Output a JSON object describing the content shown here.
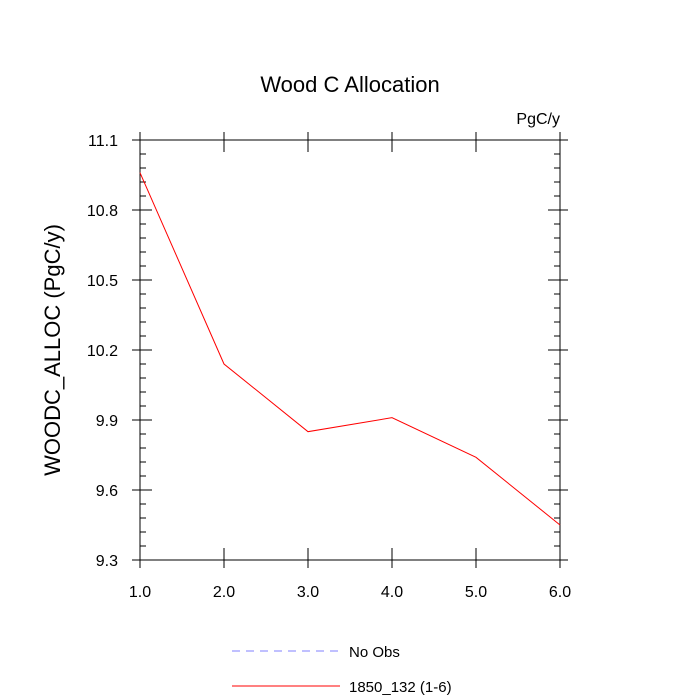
{
  "chart_data": {
    "type": "line",
    "title": "Wood C Allocation",
    "units": "PgC/y",
    "xlabel": "",
    "ylabel": "WOODC_ALLOC  (PgC/y)",
    "xlim": [
      1.0,
      6.0
    ],
    "ylim": [
      9.3,
      11.1
    ],
    "x_ticks": [
      "1.0",
      "2.0",
      "3.0",
      "4.0",
      "5.0",
      "6.0"
    ],
    "y_ticks": [
      "9.3",
      "9.6",
      "9.9",
      "10.2",
      "10.5",
      "10.8",
      "11.1"
    ],
    "x_tick_values": [
      1,
      2,
      3,
      4,
      5,
      6
    ],
    "y_tick_values": [
      9.3,
      9.6,
      9.9,
      10.2,
      10.5,
      10.8,
      11.1
    ],
    "series": [
      {
        "name": "1850_132 (1-6)",
        "color": "#ff0000",
        "x": [
          1,
          2,
          3,
          4,
          5,
          6
        ],
        "values": [
          10.96,
          10.14,
          9.85,
          9.91,
          9.74,
          9.45
        ]
      }
    ],
    "legend": {
      "placement": "bottom",
      "entries": [
        {
          "label": "No Obs",
          "color": "#8080ff",
          "style": "dashed"
        },
        {
          "label": "1850_132 (1-6)",
          "color": "#ff0000",
          "style": "solid"
        }
      ]
    },
    "grid": false
  }
}
